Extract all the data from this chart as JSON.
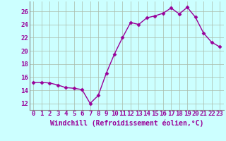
{
  "x": [
    0,
    1,
    2,
    3,
    4,
    5,
    6,
    7,
    8,
    9,
    10,
    11,
    12,
    13,
    14,
    15,
    16,
    17,
    18,
    19,
    20,
    21,
    22,
    23
  ],
  "y": [
    15.2,
    15.2,
    15.1,
    14.8,
    14.4,
    14.3,
    14.1,
    12.0,
    13.2,
    16.6,
    19.5,
    22.0,
    24.3,
    24.0,
    25.0,
    25.3,
    25.7,
    26.5,
    25.6,
    26.6,
    25.1,
    22.7,
    21.3,
    20.6
  ],
  "line_color": "#990099",
  "marker": "D",
  "marker_size": 2.5,
  "bg_color": "#ccffff",
  "grid_color": "#aabbaa",
  "xlabel": "Windchill (Refroidissement éolien,°C)",
  "ylim": [
    11.0,
    27.5
  ],
  "xlim": [
    -0.5,
    23.5
  ],
  "yticks": [
    12,
    14,
    16,
    18,
    20,
    22,
    24,
    26
  ],
  "xtick_labels": [
    "0",
    "1",
    "2",
    "3",
    "4",
    "5",
    "6",
    "7",
    "8",
    "9",
    "10",
    "11",
    "12",
    "13",
    "14",
    "15",
    "16",
    "17",
    "18",
    "19",
    "20",
    "21",
    "22",
    "23"
  ],
  "font_color": "#990099",
  "tick_fontsize": 6.5,
  "xlabel_fontsize": 7.0,
  "linewidth": 1.0
}
